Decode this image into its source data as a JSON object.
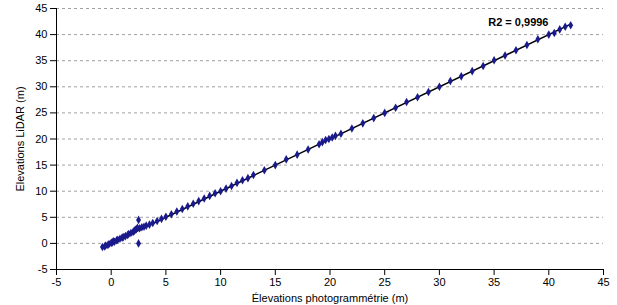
{
  "chart_data": {
    "type": "scatter",
    "x_label": "Élevations photogrammétrie (m)",
    "y_label": "Elevations LiDAR (m)",
    "annotation": "R2 = 0,9996",
    "x": [
      -0.8,
      -0.6,
      -0.5,
      -0.3,
      -0.2,
      0,
      0.1,
      0.2,
      0.3,
      0.5,
      0.6,
      0.8,
      1.0,
      1.1,
      1.3,
      1.5,
      1.6,
      1.8,
      2.0,
      2.1,
      2.2,
      2.3,
      2.4,
      2.5,
      2.5,
      2.6,
      2.8,
      3.0,
      3.2,
      3.5,
      3.8,
      4.2,
      4.6,
      5.0,
      5.5,
      6.0,
      6.5,
      7.0,
      7.5,
      8.0,
      8.5,
      9.0,
      9.5,
      10.0,
      10.5,
      11.0,
      11.5,
      12.0,
      12.5,
      13.0,
      14,
      15,
      16,
      17,
      18,
      19,
      19.3,
      19.6,
      19.9,
      20.2,
      20.5,
      21,
      22,
      23,
      24,
      25,
      26,
      27,
      28,
      29,
      30,
      31,
      32,
      33,
      34,
      35,
      36,
      37,
      38,
      39,
      40,
      40.5,
      41,
      41.5,
      42
    ],
    "values": [
      -0.7,
      -0.6,
      -0.4,
      -0.3,
      -0.1,
      0.1,
      0.2,
      0.4,
      0.3,
      0.6,
      0.7,
      0.9,
      1.1,
      1.2,
      1.4,
      1.6,
      1.8,
      2.0,
      2.2,
      2.4,
      2.6,
      2.7,
      3.0,
      4.5,
      0.0,
      2.9,
      3.1,
      3.2,
      3.4,
      3.6,
      3.9,
      4.3,
      4.7,
      5.1,
      5.6,
      6.1,
      6.6,
      7.1,
      7.6,
      8.1,
      8.6,
      9.1,
      9.6,
      10.0,
      10.5,
      11.0,
      11.6,
      12.1,
      12.5,
      13.1,
      14.0,
      15.0,
      16.1,
      17.0,
      18.0,
      19.0,
      19.4,
      19.8,
      20.0,
      20.3,
      20.6,
      21.0,
      22.0,
      23.0,
      24.0,
      25.0,
      26.0,
      27.1,
      28.0,
      29.0,
      30.0,
      31.1,
      32.0,
      33.0,
      34.0,
      35.1,
      36.0,
      37.0,
      38.0,
      39.1,
      40.0,
      40.3,
      41.0,
      41.5,
      41.8
    ],
    "color": "#1a1a8c",
    "marker": "diamond",
    "trendline": {
      "x": [
        -0.6,
        42
      ],
      "values": [
        -0.6,
        42
      ],
      "color": "#000000"
    },
    "xlim": [
      -5,
      45
    ],
    "xticks": [
      -5,
      0,
      5,
      10,
      15,
      20,
      25,
      30,
      35,
      40,
      45
    ],
    "ylim": [
      -5,
      45
    ],
    "yticks": [
      -5,
      0,
      5,
      10,
      15,
      20,
      25,
      30,
      35,
      40,
      45
    ],
    "grid": true
  }
}
